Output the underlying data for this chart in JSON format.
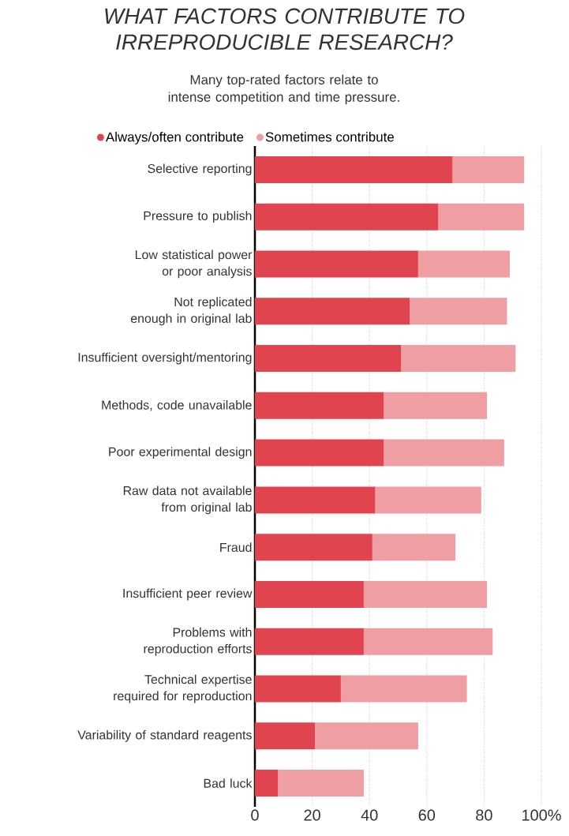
{
  "chart_data": {
    "type": "bar",
    "orientation": "horizontal",
    "stacked": true,
    "title": "WHAT FACTORS CONTRIBUTE TO IRREPRODUCIBLE RESEARCH?",
    "subtitle": "Many top-rated factors relate to intense competition and time pressure.",
    "categories": [
      "Selective reporting",
      "Pressure to publish",
      "Low statistical power or poor analysis",
      "Not replicated enough in original lab",
      "Insufficient oversight/mentoring",
      "Methods, code unavailable",
      "Poor experimental design",
      "Raw data not available from original lab",
      "Fraud",
      "Insufficient peer review",
      "Problems with reproduction efforts",
      "Technical expertise required for reproduction",
      "Variability of standard reagents",
      "Bad luck"
    ],
    "series": [
      {
        "name": "Always/often contribute",
        "color": "#e0454f",
        "values": [
          69,
          64,
          57,
          54,
          51,
          45,
          45,
          42,
          41,
          38,
          38,
          30,
          21,
          8
        ]
      },
      {
        "name": "Sometimes contribute",
        "color": "#ef9ea3",
        "values": [
          25,
          30,
          32,
          34,
          40,
          36,
          42,
          37,
          29,
          43,
          45,
          44,
          36,
          30
        ]
      }
    ],
    "xlim": [
      0,
      100
    ],
    "xticks": [
      0,
      20,
      40,
      60,
      80,
      {
        "value": 100,
        "label": "100%"
      }
    ],
    "grid": "x",
    "legend": "top left"
  }
}
